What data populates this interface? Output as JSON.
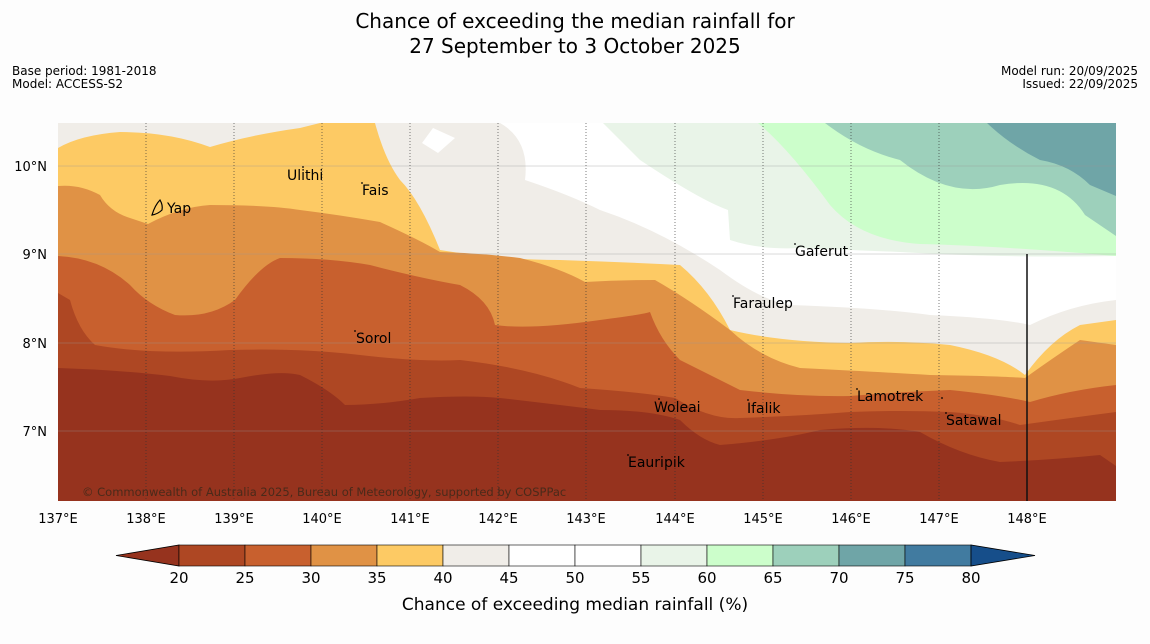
{
  "header": {
    "title_line1": "Chance of exceeding the median rainfall for",
    "title_line2": "27 September to 3 October 2025",
    "base_period": "Base period: 1981-2018",
    "model": "Model: ACCESS-S2",
    "model_run": "Model run: 20/09/2025",
    "issued": "Issued: 22/09/2025"
  },
  "map": {
    "lat_labels": [
      "10°N",
      "9°N",
      "8°N",
      "7°N"
    ],
    "lon_labels": [
      "137°E",
      "138°E",
      "139°E",
      "140°E",
      "141°E",
      "142°E",
      "143°E",
      "144°E",
      "145°E",
      "146°E",
      "147°E",
      "148°E"
    ],
    "places": [
      "Ulithi",
      "Fais",
      "Yap",
      "Gaferut",
      "Faraulep",
      "Sorol",
      "Lamotrek",
      "Woleai",
      "Ifalik",
      "Satawal",
      "Eauripik"
    ],
    "copyright": "© Commonwealth of Australia 2025, Bureau of Meteorology, supported by COSPPac"
  },
  "colorbar": {
    "ticks": [
      "20",
      "25",
      "30",
      "35",
      "40",
      "45",
      "50",
      "55",
      "60",
      "65",
      "70",
      "75",
      "80"
    ],
    "colors": [
      "#ae4723",
      "#c8602e",
      "#e09245",
      "#fdca64",
      "#f0ede8",
      "#ffffff",
      "#ffffff",
      "#e9f4e8",
      "#ccfecb",
      "#9dd0bb",
      "#6fa5a7",
      "#417ba0"
    ],
    "low_color": "#96331e",
    "high_color": "#164e8a",
    "label": "Chance of exceeding median rainfall (%)"
  }
}
